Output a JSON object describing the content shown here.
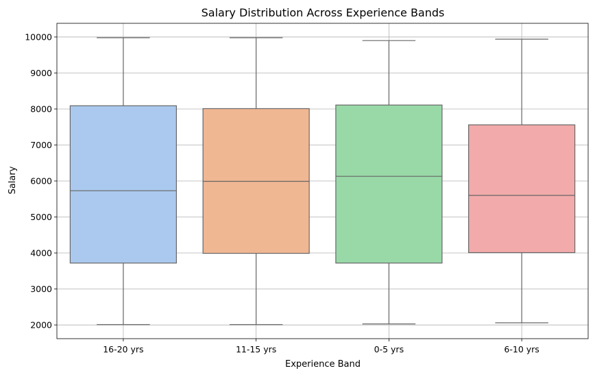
{
  "chart_data": {
    "type": "box",
    "title": "Salary Distribution Across Experience Bands",
    "xlabel": "Experience Band",
    "ylabel": "Salary",
    "categories": [
      "16-20 yrs",
      "11-15 yrs",
      "0-5 yrs",
      "6-10 yrs"
    ],
    "boxes": [
      {
        "category": "16-20 yrs",
        "whisker_low": 2010,
        "q1": 3720,
        "median": 5730,
        "q3": 8090,
        "whisker_high": 9980,
        "color": "#abc9ee"
      },
      {
        "category": "11-15 yrs",
        "whisker_low": 2010,
        "q1": 3990,
        "median": 5990,
        "q3": 8010,
        "whisker_high": 9980,
        "color": "#f0b793"
      },
      {
        "category": "0-5 yrs",
        "whisker_low": 2030,
        "q1": 3720,
        "median": 6130,
        "q3": 8110,
        "whisker_high": 9900,
        "color": "#99d9a8"
      },
      {
        "category": "6-10 yrs",
        "whisker_low": 2060,
        "q1": 4010,
        "median": 5600,
        "q3": 7560,
        "whisker_high": 9940,
        "color": "#f2aaaa"
      }
    ],
    "y_ticks": [
      2000,
      3000,
      4000,
      5000,
      6000,
      7000,
      8000,
      9000,
      10000
    ],
    "ylim": [
      1620,
      10380
    ],
    "grid": true,
    "legend": "none"
  }
}
